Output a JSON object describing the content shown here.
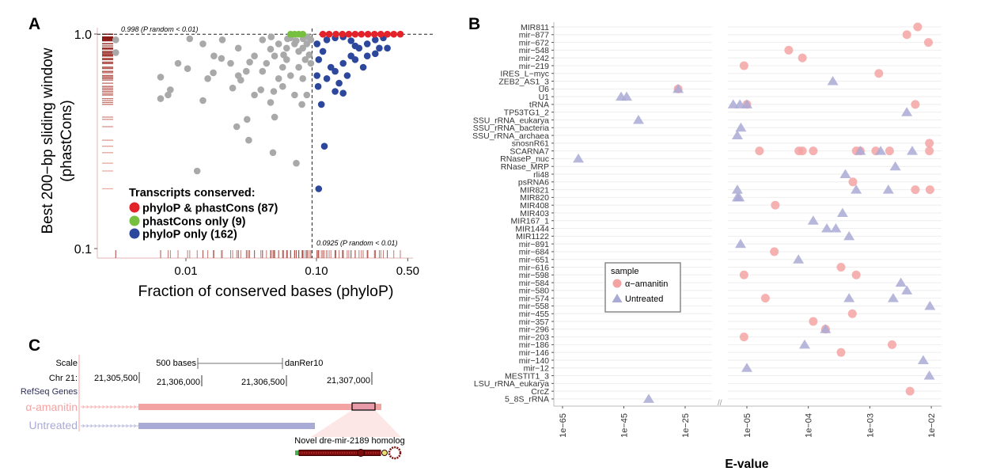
{
  "panels": {
    "a": "A",
    "b": "B",
    "c": "C"
  },
  "chart_data": [
    {
      "panel": "A",
      "type": "scatter",
      "xlabel": "Fraction of conserved bases (phyloP)",
      "ylabel_lines": [
        "Best 200−bp sliding window",
        "(phastCons)"
      ],
      "x_scale": "log",
      "y_scale": "log",
      "xlim": [
        0.0025,
        0.55
      ],
      "ylim": [
        0.1,
        1.0
      ],
      "x_ticks": [
        {
          "v": 0.01,
          "label": "0.01"
        },
        {
          "v": 0.1,
          "label": "0.10"
        },
        {
          "v": 0.5,
          "label": "0.50"
        }
      ],
      "y_ticks": [
        {
          "v": 1.0,
          "label": "1.0"
        },
        {
          "v": 0.1,
          "label": "0.1"
        }
      ],
      "thresholds": {
        "y": {
          "value": 0.998,
          "label": "0.998 (P random < 0.01)"
        },
        "x": {
          "value": 0.0925,
          "label": "0.0925 (P random < 0.01)"
        }
      },
      "rugs": [
        "left",
        "bottom"
      ],
      "legend": {
        "title": "Transcripts conserved:",
        "placement": "bottom-left",
        "items": [
          {
            "label": "phyloP & phastCons (87)",
            "color": "#e3232a"
          },
          {
            "label": "phastCons only (9)",
            "color": "#76bf3f"
          },
          {
            "label": "phyloP only (162)",
            "color": "#2c479c"
          }
        ]
      },
      "series": [
        {
          "key": "not-conserved",
          "color": "#a9a9a9",
          "points": [
            [
              0.0029,
              0.94
            ],
            [
              0.0029,
              0.82
            ],
            [
              0.0064,
              0.63
            ],
            [
              0.0064,
              0.5
            ],
            [
              0.0073,
              0.52
            ],
            [
              0.0076,
              0.55
            ],
            [
              0.0103,
              0.69
            ],
            [
              0.0107,
              0.95
            ],
            [
              0.0135,
              0.9
            ],
            [
              0.0162,
              0.66
            ],
            [
              0.0187,
              0.77
            ],
            [
              0.0228,
              0.56
            ],
            [
              0.0263,
              0.61
            ],
            [
              0.0294,
              0.4
            ],
            [
              0.0308,
              0.74
            ],
            [
              0.0375,
              0.55
            ],
            [
              0.0478,
              0.41
            ],
            [
              0.0464,
              0.28
            ],
            [
              0.068,
              0.52
            ],
            [
              0.0785,
              0.62
            ],
            [
              0.0774,
              0.47
            ],
            [
              0.0513,
              0.62
            ],
            [
              0.0252,
              0.86
            ],
            [
              0.0335,
              0.79
            ],
            [
              0.0445,
              0.85
            ],
            [
              0.0591,
              0.76
            ],
            [
              0.0732,
              0.83
            ],
            [
              0.0843,
              0.9
            ],
            [
              0.0906,
              0.73
            ],
            [
              0.0634,
              0.96
            ],
            [
              0.0386,
              0.94
            ],
            [
              0.019,
              0.94
            ],
            [
              0.0147,
              0.62
            ],
            [
              0.0135,
              0.49
            ],
            [
              0.0445,
              0.48
            ],
            [
              0.0303,
              0.32
            ],
            [
              0.0122,
              0.23
            ],
            [
              0.0471,
              0.54
            ],
            [
              0.0386,
              0.67
            ],
            [
              0.0551,
              0.57
            ],
            [
              0.0335,
              0.52
            ],
            [
              0.0252,
              0.64
            ],
            [
              0.0843,
              0.52
            ],
            [
              0.0245,
              0.37
            ],
            [
              0.0701,
              0.25
            ],
            [
              0.0513,
              0.9
            ],
            [
              0.0591,
              0.86
            ],
            [
              0.068,
              0.9
            ],
            [
              0.0785,
              0.86
            ],
            [
              0.0906,
              0.94
            ],
            [
              0.0551,
              0.7
            ],
            [
              0.0634,
              0.64
            ],
            [
              0.0732,
              0.7
            ],
            [
              0.0478,
              0.79
            ],
            [
              0.0414,
              0.73
            ],
            [
              0.029,
              0.67
            ],
            [
              0.022,
              0.73
            ],
            [
              0.0164,
              0.79
            ],
            [
              0.0087,
              0.73
            ],
            [
              0.0855,
              0.97
            ],
            [
              0.079,
              0.95
            ],
            [
              0.07,
              0.93
            ],
            [
              0.06,
              0.95
            ],
            [
              0.088,
              0.8
            ],
            [
              0.082,
              0.76
            ],
            [
              0.045,
              0.97
            ],
            [
              0.056,
              0.8
            ]
          ]
        },
        {
          "key": "phyloP-only",
          "name": "phyloP only (162)",
          "color": "#2c479c",
          "points": [
            [
              0.115,
              0.3
            ],
            [
              0.104,
              0.19
            ],
            [
              0.109,
              0.47
            ],
            [
              0.103,
              0.57
            ],
            [
              0.12,
              0.62
            ],
            [
              0.139,
              0.67
            ],
            [
              0.16,
              0.73
            ],
            [
              0.184,
              0.79
            ],
            [
              0.212,
              0.86
            ],
            [
              0.245,
              0.9
            ],
            [
              0.282,
              0.94
            ],
            [
              0.325,
              0.96
            ],
            [
              0.139,
              0.54
            ],
            [
              0.16,
              0.53
            ],
            [
              0.149,
              0.59
            ],
            [
              0.129,
              0.7
            ],
            [
              0.172,
              0.64
            ],
            [
              0.198,
              0.76
            ],
            [
              0.228,
              0.7
            ],
            [
              0.101,
              0.64
            ],
            [
              0.104,
              0.76
            ],
            [
              0.112,
              0.83
            ],
            [
              0.101,
              0.9
            ],
            [
              0.12,
              0.94
            ],
            [
              0.139,
              0.96
            ],
            [
              0.16,
              0.97
            ],
            [
              0.184,
              0.93
            ],
            [
              0.245,
              0.79
            ],
            [
              0.303,
              0.86
            ],
            [
              0.349,
              0.86
            ],
            [
              0.282,
              0.81
            ],
            [
              0.198,
              0.88
            ]
          ]
        },
        {
          "key": "both",
          "name": "phyloP & phastCons (87)",
          "color": "#e3232a",
          "points": [
            [
              0.112,
              0.998
            ],
            [
              0.125,
              0.998
            ],
            [
              0.141,
              0.998
            ],
            [
              0.158,
              0.998
            ],
            [
              0.177,
              0.998
            ],
            [
              0.198,
              0.998
            ],
            [
              0.221,
              0.998
            ],
            [
              0.248,
              0.998
            ],
            [
              0.278,
              0.998
            ],
            [
              0.311,
              0.998
            ],
            [
              0.349,
              0.998
            ],
            [
              0.391,
              0.998
            ],
            [
              0.439,
              0.998
            ]
          ]
        },
        {
          "key": "phastCons-only",
          "name": "phastCons only (9)",
          "color": "#76bf3f",
          "points": [
            [
              0.0634,
              0.998
            ],
            [
              0.068,
              0.998
            ],
            [
              0.0732,
              0.998
            ],
            [
              0.0785,
              0.998
            ]
          ]
        }
      ]
    },
    {
      "panel": "B",
      "type": "scatter",
      "xlabel": "E-value",
      "x_scale": "log (broken axis)",
      "x_ticks": [
        "1e−65",
        "1e−45",
        "1e−25",
        "1e−05",
        "1e−04",
        "1e−03",
        "1e−02"
      ],
      "x_tick_values": [
        1e-65,
        1e-45,
        1e-25,
        1e-05,
        0.0001,
        0.001,
        0.01
      ],
      "grid": true,
      "legend": {
        "title": "sample",
        "placement": "center-left",
        "items": [
          {
            "label": "α−amanitin",
            "color": "#f4a3a3",
            "shape": "circle"
          },
          {
            "label": "Untreated",
            "color": "#aaaad6",
            "shape": "triangle"
          }
        ]
      },
      "rows": [
        {
          "label": "MIR811",
          "alpha": [
            0.006
          ],
          "untreated": []
        },
        {
          "label": "mir−877",
          "alpha": [
            0.004
          ],
          "untreated": []
        },
        {
          "label": "mir−672",
          "alpha": [
            0.009
          ],
          "untreated": []
        },
        {
          "label": "mir−548",
          "alpha": [
            4.8e-05
          ],
          "untreated": []
        },
        {
          "label": "mir−242",
          "alpha": [
            8e-05
          ],
          "untreated": []
        },
        {
          "label": "mir−219",
          "alpha": [
            9e-06
          ],
          "untreated": []
        },
        {
          "label": "IRES_L−myc",
          "alpha": [
            0.0014
          ],
          "untreated": []
        },
        {
          "label": "ZEB2_AS1_3",
          "alpha": [],
          "untreated": [
            0.00025
          ]
        },
        {
          "label": "U6",
          "alpha": [
            5e-28
          ],
          "untreated": [
            5e-28
          ]
        },
        {
          "label": "U1",
          "alpha": [],
          "untreated": [
            1.3e-46,
            8e-45
          ]
        },
        {
          "label": "tRNA",
          "alpha": [
            1e-05,
            0.0055
          ],
          "untreated": [
            6e-06,
            7.7e-06,
            1e-05
          ]
        },
        {
          "label": "TP53TG1_2",
          "alpha": [],
          "untreated": [
            0.004
          ]
        },
        {
          "label": "SSU_rRNA_eukarya",
          "alpha": [],
          "untreated": [
            6e-41
          ]
        },
        {
          "label": "SSU_rRNA_bacteria",
          "alpha": [],
          "untreated": [
            8e-06
          ]
        },
        {
          "label": "SSU_rRNA_archaea",
          "alpha": [],
          "untreated": [
            7e-06
          ]
        },
        {
          "label": "snosnR61",
          "alpha": [
            0.0093
          ],
          "untreated": []
        },
        {
          "label": "SCARNA7",
          "alpha": [
            1.6e-05,
            7e-05,
            8e-05,
            0.00012,
            0.0006,
            0.0007,
            0.00125,
            0.0021,
            0.0093
          ],
          "untreated": [
            0.0007,
            0.0015,
            0.0049
          ]
        },
        {
          "label": "RNaseP_nuc",
          "alpha": [],
          "untreated": [
            1.5e-60
          ]
        },
        {
          "label": "RNase_MRP",
          "alpha": [],
          "untreated": [
            0.0026
          ]
        },
        {
          "label": "rli48",
          "alpha": [],
          "untreated": [
            0.0004
          ]
        },
        {
          "label": "psRNA6",
          "alpha": [
            0.00053
          ],
          "untreated": []
        },
        {
          "label": "MIR821",
          "alpha": [
            0.0055,
            0.0095
          ],
          "untreated": [
            7e-06,
            0.0006,
            0.002
          ]
        },
        {
          "label": "MIR820",
          "alpha": [],
          "untreated": [
            7e-06,
            7.5e-06
          ]
        },
        {
          "label": "MIR408",
          "alpha": [
            2.9e-05
          ],
          "untreated": []
        },
        {
          "label": "MIR403",
          "alpha": [],
          "untreated": [
            0.00036
          ]
        },
        {
          "label": "MIR167_1",
          "alpha": [],
          "untreated": [
            0.00012
          ]
        },
        {
          "label": "MIR1444",
          "alpha": [],
          "untreated": [
            0.0002,
            0.00028
          ]
        },
        {
          "label": "MIR1122",
          "alpha": [],
          "untreated": [
            0.00046
          ]
        },
        {
          "label": "mir−891",
          "alpha": [],
          "untreated": [
            7.9e-06
          ]
        },
        {
          "label": "mir−684",
          "alpha": [
            2.8e-05
          ],
          "untreated": []
        },
        {
          "label": "mir−651",
          "alpha": [],
          "untreated": [
            6.9e-05
          ]
        },
        {
          "label": "mir−616",
          "alpha": [
            0.00034
          ],
          "untreated": []
        },
        {
          "label": "mir−598",
          "alpha": [
            9e-06,
            0.0006
          ],
          "untreated": []
        },
        {
          "label": "mir−584",
          "alpha": [],
          "untreated": [
            0.0032
          ]
        },
        {
          "label": "mir−580",
          "alpha": [],
          "untreated": [
            0.004
          ]
        },
        {
          "label": "mir−574",
          "alpha": [
            2e-05
          ],
          "untreated": [
            0.00046,
            0.0024
          ]
        },
        {
          "label": "mir−558",
          "alpha": [],
          "untreated": [
            0.0095
          ]
        },
        {
          "label": "mir−455",
          "alpha": [
            0.00052
          ],
          "untreated": []
        },
        {
          "label": "mir−357",
          "alpha": [
            0.00012
          ],
          "untreated": []
        },
        {
          "label": "mir−296",
          "alpha": [
            0.00019
          ],
          "untreated": [
            0.00019
          ]
        },
        {
          "label": "mir−203",
          "alpha": [
            9e-06
          ],
          "untreated": []
        },
        {
          "label": "mir−186",
          "alpha": [
            0.0023
          ],
          "untreated": [
            8.7e-05
          ]
        },
        {
          "label": "mir−146",
          "alpha": [
            0.00034
          ],
          "untreated": []
        },
        {
          "label": "mir−140",
          "alpha": [],
          "untreated": [
            0.0074
          ]
        },
        {
          "label": "mir−12",
          "alpha": [],
          "untreated": [
            1e-05
          ]
        },
        {
          "label": "MESTIT1_3",
          "alpha": [],
          "untreated": [
            0.0093
          ]
        },
        {
          "label": "LSU_rRNA_eukarya",
          "alpha": [],
          "untreated": []
        },
        {
          "label": "CrcZ",
          "alpha": [
            0.0045
          ],
          "untreated": []
        },
        {
          "label": "5_8S_rRNA",
          "alpha": [],
          "untreated": [
            1.3e-37
          ]
        }
      ]
    }
  ],
  "panel_c": {
    "scale_label": "Scale",
    "scale_bar_label": "500 bases",
    "assembly": "danRer10",
    "chrom_label": "Chr 21:",
    "coordinates": [
      "21,305,500",
      "21,306,000",
      "21,306,500",
      "21,307,000"
    ],
    "track_label": "RefSeq Genes",
    "tracks": [
      {
        "label": "α-amanitin",
        "color": "#f4a3a3"
      },
      {
        "label": "Untreated",
        "color": "#aaaad6"
      }
    ],
    "callout": "Novel dre-mir-2189 homolog"
  }
}
